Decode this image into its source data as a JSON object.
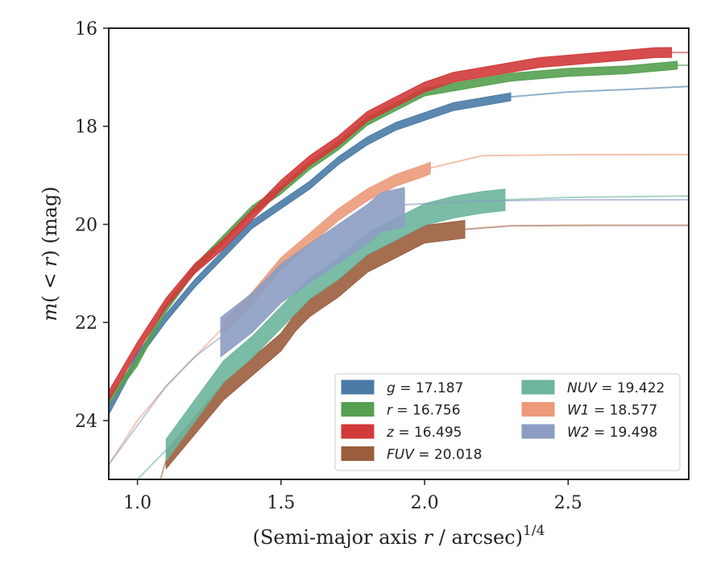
{
  "chart_data": {
    "type": "line",
    "xlabel_main": "(Semi-major axis ",
    "xlabel_var": "r",
    "xlabel_unit": " / arcsec)",
    "xlabel_exp": "1/4",
    "ylabel_m": "m",
    "ylabel_paren_open": "(",
    "ylabel_lt": " < ",
    "ylabel_r": "r",
    "ylabel_rest": ") (mag)",
    "xlim": [
      0.9,
      2.92
    ],
    "ylim": [
      25.2,
      16.0
    ],
    "y_inverted": true,
    "x_ticks": [
      1.0,
      1.5,
      2.0,
      2.5
    ],
    "x_tick_labels": [
      "1.0",
      "1.5",
      "2.0",
      "2.5"
    ],
    "y_ticks": [
      16,
      18,
      20,
      22,
      24
    ],
    "y_tick_labels": [
      "16",
      "18",
      "20",
      "22",
      "24"
    ],
    "grid": false,
    "legend_position": "lower-right",
    "legend_columns": 2,
    "series": [
      {
        "key": "g",
        "band": "g",
        "value": "17.187",
        "italic": true,
        "color": "#4a7ba7",
        "x": [
          0.9,
          1.0,
          1.1,
          1.2,
          1.3,
          1.4,
          1.5,
          1.6,
          1.7,
          1.8,
          1.9,
          2.0,
          2.1,
          2.2,
          2.3
        ],
        "y": [
          23.8,
          22.7,
          21.9,
          21.2,
          20.6,
          20.0,
          19.6,
          19.2,
          18.7,
          18.3,
          18.0,
          17.8,
          17.6,
          17.5,
          17.4
        ],
        "band_half": 0.08,
        "x_ext": [
          2.3,
          2.5,
          2.7,
          2.92
        ],
        "y_ext": [
          17.4,
          17.3,
          17.25,
          17.187
        ]
      },
      {
        "key": "r",
        "band": "r",
        "value": "16.756",
        "italic": true,
        "color": "#55a050",
        "x": [
          0.9,
          1.0,
          1.1,
          1.2,
          1.3,
          1.4,
          1.5,
          1.6,
          1.7,
          1.8,
          1.9,
          2.0,
          2.1,
          2.2,
          2.3,
          2.5,
          2.7,
          2.88
        ],
        "y": [
          23.6,
          22.8,
          21.7,
          20.9,
          20.3,
          19.7,
          19.3,
          18.8,
          18.4,
          17.9,
          17.6,
          17.3,
          17.2,
          17.1,
          17.0,
          16.9,
          16.85,
          16.756
        ],
        "band_half": 0.08,
        "x_ext": [
          2.88,
          2.92
        ],
        "y_ext": [
          16.756,
          16.756
        ]
      },
      {
        "key": "z",
        "band": "z",
        "value": "16.495",
        "italic": true,
        "color": "#d23a3a",
        "x": [
          0.9,
          0.95,
          1.0,
          1.1,
          1.2,
          1.3,
          1.35,
          1.4,
          1.5,
          1.6,
          1.7,
          1.8,
          1.9,
          2.0,
          2.1,
          2.2,
          2.3,
          2.4,
          2.5,
          2.6,
          2.7,
          2.8,
          2.86
        ],
        "y": [
          23.5,
          23.0,
          22.5,
          21.6,
          20.9,
          20.4,
          20.1,
          19.8,
          19.2,
          18.7,
          18.3,
          17.8,
          17.5,
          17.2,
          17.0,
          16.9,
          16.8,
          16.7,
          16.65,
          16.6,
          16.55,
          16.5,
          16.495
        ],
        "band_half": 0.1,
        "x_ext": [
          2.86,
          2.92
        ],
        "y_ext": [
          16.495,
          16.495
        ]
      },
      {
        "key": "fuv",
        "band": "FUV",
        "value": "20.018",
        "italic": true,
        "color": "#9b5e3e",
        "x": [
          1.1,
          1.2,
          1.3,
          1.4,
          1.5,
          1.55,
          1.6,
          1.7,
          1.8,
          1.9,
          2.0,
          2.14
        ],
        "y": [
          24.8,
          24.1,
          23.4,
          22.9,
          22.4,
          22.0,
          21.7,
          21.3,
          20.8,
          20.5,
          20.2,
          20.1
        ],
        "band_half": 0.18,
        "x_ext": [
          2.14,
          2.3,
          2.5,
          2.92
        ],
        "y_ext": [
          20.1,
          20.03,
          20.02,
          20.018
        ],
        "x_pre": [
          1.08,
          1.1
        ],
        "y_pre": [
          25.2,
          24.8
        ]
      },
      {
        "key": "nuv",
        "band": "NUV",
        "value": "19.422",
        "italic": true,
        "color": "#6db59c",
        "x": [
          1.1,
          1.2,
          1.3,
          1.4,
          1.5,
          1.6,
          1.7,
          1.8,
          1.9,
          2.0,
          2.1,
          2.2,
          2.28
        ],
        "y": [
          24.6,
          23.8,
          23.0,
          22.5,
          21.9,
          21.3,
          20.9,
          20.4,
          20.1,
          19.8,
          19.65,
          19.55,
          19.5
        ],
        "band_half": 0.22,
        "x_ext": [
          2.28,
          2.5,
          2.92
        ],
        "y_ext": [
          19.5,
          19.45,
          19.422
        ],
        "x_pre": [
          1.0,
          1.1
        ],
        "y_pre": [
          25.2,
          24.6
        ]
      },
      {
        "key": "w1",
        "band": "W1",
        "value": "18.577",
        "italic": true,
        "color": "#ec9a7a",
        "x": [
          1.3,
          1.4,
          1.5,
          1.6,
          1.7,
          1.8,
          1.9,
          2.0,
          2.02
        ],
        "y": [
          22.1,
          21.5,
          20.8,
          20.3,
          19.8,
          19.4,
          19.1,
          18.9,
          18.85
        ],
        "band_half": 0.12,
        "x_ext": [
          2.02,
          2.2,
          2.5,
          2.92
        ],
        "y_ext": [
          18.85,
          18.6,
          18.58,
          18.577
        ],
        "x_pre": [
          0.9,
          1.0,
          1.1,
          1.2,
          1.3
        ],
        "y_pre": [
          24.9,
          24.0,
          23.3,
          22.7,
          22.1
        ]
      },
      {
        "key": "w2",
        "band": "W2",
        "value": "19.498",
        "italic": true,
        "color": "#8c9dc3",
        "x": [
          1.29,
          1.4,
          1.5,
          1.6,
          1.7,
          1.8,
          1.85,
          1.93
        ],
        "y": [
          22.3,
          21.8,
          21.2,
          20.8,
          20.4,
          20.0,
          19.75,
          19.65
        ],
        "band_half": 0.4,
        "x_ext": [
          1.93,
          2.2,
          2.5,
          2.92
        ],
        "y_ext": [
          19.6,
          19.52,
          19.5,
          19.498
        ],
        "x_pre": [
          0.9,
          1.0,
          1.1,
          1.2,
          1.29
        ],
        "y_pre": [
          24.9,
          24.1,
          23.3,
          22.7,
          22.3
        ]
      }
    ],
    "legend": [
      {
        "key": "g",
        "label": "g",
        "text": " = 17.187",
        "color": "#4a7ba7"
      },
      {
        "key": "r",
        "label": "r",
        "text": " = 16.756",
        "color": "#55a050"
      },
      {
        "key": "z",
        "label": "z",
        "text": " = 16.495",
        "color": "#d23a3a"
      },
      {
        "key": "fuv",
        "label": "FUV",
        "text": " = 20.018",
        "color": "#9b5e3e"
      },
      {
        "key": "nuv",
        "label": "NUV",
        "text": " = 19.422",
        "color": "#6db59c"
      },
      {
        "key": "w1",
        "label": "W1",
        "text": " = 18.577",
        "color": "#ec9a7a"
      },
      {
        "key": "w2",
        "label": "W2",
        "text": " = 19.498",
        "color": "#8c9dc3"
      }
    ]
  }
}
